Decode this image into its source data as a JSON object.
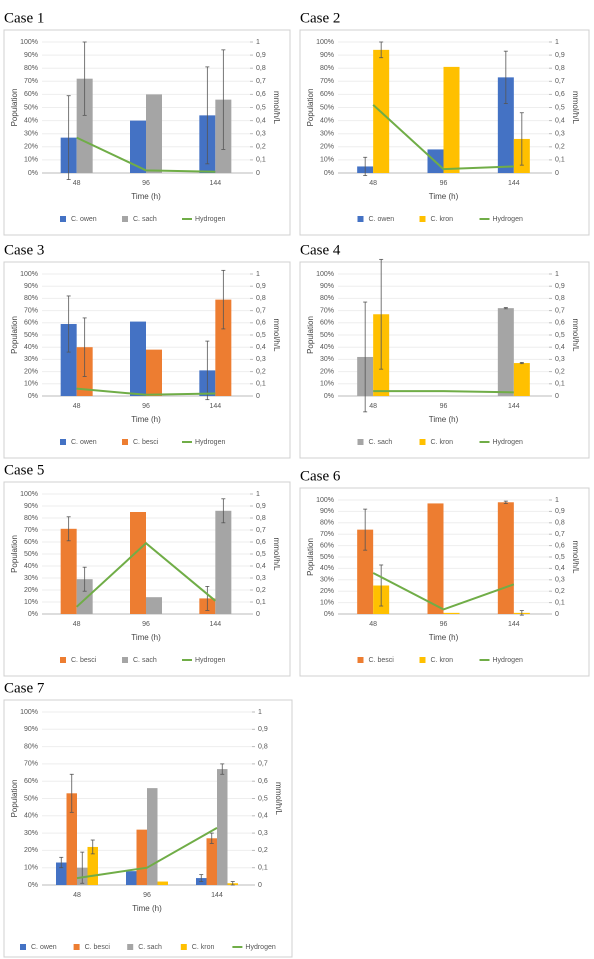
{
  "chart_data": [
    {
      "type": "bar",
      "title": "Case 1",
      "x_label": "Time (h)",
      "y_label": "Population",
      "y2_label": "mmol/h/L",
      "categories": [
        "48",
        "96",
        "144"
      ],
      "series": [
        {
          "name": "C. owen",
          "color": "#4472c4",
          "values": [
            27,
            40,
            44
          ],
          "errors": [
            32,
            null,
            37
          ]
        },
        {
          "name": "C. sach",
          "color": "#a5a5a5",
          "values": [
            72,
            60,
            56
          ],
          "errors": [
            28,
            null,
            38
          ]
        },
        {
          "name": "Hydrogen",
          "color": "#70ad47",
          "type": "line",
          "axis": "y2",
          "values": [
            0.27,
            0.02,
            0.01
          ]
        }
      ],
      "ylim": [
        0,
        100
      ],
      "yticks": [
        {
          "value": 0,
          "label": "0%"
        },
        {
          "value": 10,
          "label": "10%"
        },
        {
          "value": 20,
          "label": "20%"
        },
        {
          "value": 30,
          "label": "30%"
        },
        {
          "value": 40,
          "label": "40%"
        },
        {
          "value": 50,
          "label": "50%"
        },
        {
          "value": 60,
          "label": "60%"
        },
        {
          "value": 70,
          "label": "70%"
        },
        {
          "value": 80,
          "label": "80%"
        },
        {
          "value": 90,
          "label": "90%"
        },
        {
          "value": 100,
          "label": "100%"
        }
      ],
      "y2lim": [
        0,
        1
      ],
      "y2ticks": [
        0,
        {
          "value": 0.1,
          "label": "0,1"
        },
        {
          "value": 0.2,
          "label": "0,2"
        },
        {
          "value": 0.3,
          "label": "0,3"
        },
        {
          "value": 0.4,
          "label": "0,4"
        },
        {
          "value": 0.5,
          "label": "0,5"
        },
        {
          "value": 0.6,
          "label": "0,6"
        },
        {
          "value": 0.7,
          "label": "0,7"
        },
        {
          "value": 0.8,
          "label": "0,8"
        },
        {
          "value": 0.9,
          "label": "0,9"
        },
        1
      ],
      "legend": "bottom"
    },
    {
      "type": "bar",
      "title": "Case 2",
      "x_label": "Time (h)",
      "y_label": "Population",
      "y2_label": "mmol/h/L",
      "categories": [
        "48",
        "96",
        "144"
      ],
      "series": [
        {
          "name": "C. owen",
          "color": "#4472c4",
          "values": [
            5,
            18,
            73
          ],
          "errors": [
            7,
            null,
            20
          ]
        },
        {
          "name": "C. kron",
          "color": "#ffc000",
          "values": [
            94,
            81,
            26
          ],
          "errors": [
            6,
            null,
            20
          ]
        },
        {
          "name": "Hydrogen",
          "color": "#70ad47",
          "type": "line",
          "axis": "y2",
          "values": [
            0.52,
            0.03,
            0.05
          ]
        }
      ],
      "ylim": [
        0,
        100
      ],
      "yticks": [
        {
          "value": 0,
          "label": "0%"
        },
        {
          "value": 10,
          "label": "10%"
        },
        {
          "value": 20,
          "label": "20%"
        },
        {
          "value": 30,
          "label": "30%"
        },
        {
          "value": 40,
          "label": "40%"
        },
        {
          "value": 50,
          "label": "50%"
        },
        {
          "value": 60,
          "label": "60%"
        },
        {
          "value": 70,
          "label": "70%"
        },
        {
          "value": 80,
          "label": "80%"
        },
        {
          "value": 90,
          "label": "90%"
        },
        {
          "value": 100,
          "label": "100%"
        }
      ],
      "y2lim": [
        0,
        1
      ],
      "y2ticks": [
        0,
        {
          "value": 0.1,
          "label": "0,1"
        },
        {
          "value": 0.2,
          "label": "0,2"
        },
        {
          "value": 0.3,
          "label": "0,3"
        },
        {
          "value": 0.4,
          "label": "0,4"
        },
        {
          "value": 0.5,
          "label": "0,5"
        },
        {
          "value": 0.6,
          "label": "0,6"
        },
        {
          "value": 0.7,
          "label": "0,7"
        },
        {
          "value": 0.8,
          "label": "0,8"
        },
        {
          "value": 0.9,
          "label": "0,9"
        },
        1
      ],
      "legend": "bottom"
    },
    {
      "type": "bar",
      "title": "Case 3",
      "x_label": "Time (h)",
      "y_label": "Population",
      "y2_label": "mmol/h/L",
      "categories": [
        "48",
        "96",
        "144"
      ],
      "series": [
        {
          "name": "C. owen",
          "color": "#4472c4",
          "values": [
            59,
            61,
            21
          ],
          "errors": [
            23,
            null,
            24
          ]
        },
        {
          "name": "C. besci",
          "color": "#ed7d31",
          "values": [
            40,
            38,
            79
          ],
          "errors": [
            24,
            null,
            24
          ]
        },
        {
          "name": "Hydrogen",
          "color": "#70ad47",
          "type": "line",
          "axis": "y2",
          "values": [
            0.06,
            0.01,
            0.02
          ]
        }
      ],
      "ylim": [
        0,
        100
      ],
      "yticks": [
        {
          "value": 0,
          "label": "0%"
        },
        {
          "value": 10,
          "label": "10%"
        },
        {
          "value": 20,
          "label": "20%"
        },
        {
          "value": 30,
          "label": "30%"
        },
        {
          "value": 40,
          "label": "40%"
        },
        {
          "value": 50,
          "label": "50%"
        },
        {
          "value": 60,
          "label": "60%"
        },
        {
          "value": 70,
          "label": "70%"
        },
        {
          "value": 80,
          "label": "80%"
        },
        {
          "value": 90,
          "label": "90%"
        },
        {
          "value": 100,
          "label": "100%"
        }
      ],
      "y2lim": [
        0,
        1
      ],
      "y2ticks": [
        0,
        {
          "value": 0.1,
          "label": "0,1"
        },
        {
          "value": 0.2,
          "label": "0,2"
        },
        {
          "value": 0.3,
          "label": "0,3"
        },
        {
          "value": 0.4,
          "label": "0,4"
        },
        {
          "value": 0.5,
          "label": "0,5"
        },
        {
          "value": 0.6,
          "label": "0,6"
        },
        {
          "value": 0.7,
          "label": "0,7"
        },
        {
          "value": 0.8,
          "label": "0,8"
        },
        {
          "value": 0.9,
          "label": "0,9"
        },
        1
      ],
      "legend": "bottom"
    },
    {
      "type": "bar",
      "title": "Case 4",
      "x_label": "Time (h)",
      "y_label": "Population",
      "y2_label": "mmol/h/L",
      "categories": [
        "48",
        "96",
        "144"
      ],
      "series": [
        {
          "name": "C. sach",
          "color": "#a5a5a5",
          "values": [
            32,
            0,
            72
          ],
          "errors": [
            45,
            null,
            0.5
          ]
        },
        {
          "name": "C. kron",
          "color": "#ffc000",
          "values": [
            67,
            0,
            27
          ],
          "errors": [
            45,
            null,
            0.5
          ]
        },
        {
          "name": "Hydrogen",
          "color": "#70ad47",
          "type": "line",
          "axis": "y2",
          "values": [
            0.04,
            0.04,
            0.03
          ]
        }
      ],
      "ylim": [
        0,
        100
      ],
      "yticks": [
        {
          "value": 0,
          "label": "0%"
        },
        {
          "value": 10,
          "label": "10%"
        },
        {
          "value": 20,
          "label": "20%"
        },
        {
          "value": 30,
          "label": "30%"
        },
        {
          "value": 40,
          "label": "40%"
        },
        {
          "value": 50,
          "label": "50%"
        },
        {
          "value": 60,
          "label": "60%"
        },
        {
          "value": 70,
          "label": "70%"
        },
        {
          "value": 80,
          "label": "80%"
        },
        {
          "value": 90,
          "label": "90%"
        },
        {
          "value": 100,
          "label": "100%"
        }
      ],
      "y2lim": [
        0,
        1
      ],
      "y2ticks": [
        0,
        {
          "value": 0.1,
          "label": "0,1"
        },
        {
          "value": 0.2,
          "label": "0,2"
        },
        {
          "value": 0.3,
          "label": "0,3"
        },
        {
          "value": 0.4,
          "label": "0,4"
        },
        {
          "value": 0.5,
          "label": "0,5"
        },
        {
          "value": 0.6,
          "label": "0,6"
        },
        {
          "value": 0.7,
          "label": "0,7"
        },
        {
          "value": 0.8,
          "label": "0,8"
        },
        {
          "value": 0.9,
          "label": "0,9"
        },
        1
      ],
      "legend": "bottom"
    },
    {
      "type": "bar",
      "title": "Case 5",
      "x_label": "Time (h)",
      "y_label": "Population",
      "y2_label": "mmol/h/L",
      "categories": [
        "48",
        "96",
        "144"
      ],
      "series": [
        {
          "name": "C. besci",
          "color": "#ed7d31",
          "values": [
            71,
            85,
            13
          ],
          "errors": [
            10,
            null,
            10
          ]
        },
        {
          "name": "C. sach",
          "color": "#a5a5a5",
          "values": [
            29,
            14,
            86
          ],
          "errors": [
            10,
            null,
            10
          ]
        },
        {
          "name": "Hydrogen",
          "color": "#70ad47",
          "type": "line",
          "axis": "y2",
          "values": [
            0.06,
            0.59,
            0.11
          ]
        }
      ],
      "ylim": [
        0,
        100
      ],
      "yticks": [
        {
          "value": 0,
          "label": "0%"
        },
        {
          "value": 10,
          "label": "10%"
        },
        {
          "value": 20,
          "label": "20%"
        },
        {
          "value": 30,
          "label": "30%"
        },
        {
          "value": 40,
          "label": "40%"
        },
        {
          "value": 50,
          "label": "50%"
        },
        {
          "value": 60,
          "label": "60%"
        },
        {
          "value": 70,
          "label": "70%"
        },
        {
          "value": 80,
          "label": "80%"
        },
        {
          "value": 90,
          "label": "90%"
        },
        {
          "value": 100,
          "label": "100%"
        }
      ],
      "y2lim": [
        0,
        1
      ],
      "y2ticks": [
        0,
        {
          "value": 0.1,
          "label": "0,1"
        },
        {
          "value": 0.2,
          "label": "0,2"
        },
        {
          "value": 0.3,
          "label": "0,3"
        },
        {
          "value": 0.4,
          "label": "0,4"
        },
        {
          "value": 0.5,
          "label": "0,5"
        },
        {
          "value": 0.6,
          "label": "0,6"
        },
        {
          "value": 0.7,
          "label": "0,7"
        },
        {
          "value": 0.8,
          "label": "0,8"
        },
        {
          "value": 0.9,
          "label": "0,9"
        },
        1
      ],
      "legend": "bottom"
    },
    {
      "type": "bar",
      "title": "Case 6",
      "x_label": "Time (h)",
      "y_label": "Population",
      "y2_label": "mmol/h/L",
      "categories": [
        "48",
        "96",
        "144"
      ],
      "series": [
        {
          "name": "C. besci",
          "color": "#ed7d31",
          "values": [
            74,
            97,
            98
          ],
          "errors": [
            18,
            null,
            1
          ]
        },
        {
          "name": "C. kron",
          "color": "#ffc000",
          "values": [
            25,
            1,
            1
          ],
          "errors": [
            18,
            null,
            2
          ]
        },
        {
          "name": "Hydrogen",
          "color": "#70ad47",
          "type": "line",
          "axis": "y2",
          "values": [
            0.36,
            0.04,
            0.26
          ]
        }
      ],
      "ylim": [
        0,
        100
      ],
      "yticks": [
        {
          "value": 0,
          "label": "0%"
        },
        {
          "value": 10,
          "label": "10%"
        },
        {
          "value": 20,
          "label": "20%"
        },
        {
          "value": 30,
          "label": "30%"
        },
        {
          "value": 40,
          "label": "40%"
        },
        {
          "value": 50,
          "label": "50%"
        },
        {
          "value": 60,
          "label": "60%"
        },
        {
          "value": 70,
          "label": "70%"
        },
        {
          "value": 80,
          "label": "80%"
        },
        {
          "value": 90,
          "label": "90%"
        },
        {
          "value": 100,
          "label": "100%"
        }
      ],
      "y2lim": [
        0,
        1
      ],
      "y2ticks": [
        0,
        {
          "value": 0.1,
          "label": "0,1"
        },
        {
          "value": 0.2,
          "label": "0,2"
        },
        {
          "value": 0.3,
          "label": "0,3"
        },
        {
          "value": 0.4,
          "label": "0,4"
        },
        {
          "value": 0.5,
          "label": "0,5"
        },
        {
          "value": 0.6,
          "label": "0,6"
        },
        {
          "value": 0.7,
          "label": "0,7"
        },
        {
          "value": 0.8,
          "label": "0,8"
        },
        {
          "value": 0.9,
          "label": "0,9"
        },
        1
      ],
      "legend": "bottom"
    },
    {
      "type": "bar",
      "title": "Case 7",
      "x_label": "Time (h)",
      "y_label": "Population",
      "y2_label": "mmol/h/L",
      "categories": [
        "48",
        "96",
        "144"
      ],
      "series": [
        {
          "name": "C. owen",
          "color": "#4472c4",
          "values": [
            13,
            8,
            4
          ],
          "errors": [
            3,
            null,
            2
          ]
        },
        {
          "name": "C. besci",
          "color": "#ed7d31",
          "values": [
            53,
            32,
            27
          ],
          "errors": [
            11,
            null,
            3
          ]
        },
        {
          "name": "C. sach",
          "color": "#a5a5a5",
          "values": [
            10,
            56,
            67
          ],
          "errors": [
            9,
            null,
            3
          ]
        },
        {
          "name": "C. kron",
          "color": "#ffc000",
          "values": [
            22,
            2,
            1
          ],
          "errors": [
            4,
            null,
            1
          ]
        },
        {
          "name": "Hydrogen",
          "color": "#70ad47",
          "type": "line",
          "axis": "y2",
          "values": [
            0.04,
            0.1,
            0.33
          ]
        }
      ],
      "ylim": [
        0,
        100
      ],
      "yticks": [
        {
          "value": 0,
          "label": "0%"
        },
        {
          "value": 10,
          "label": "10%"
        },
        {
          "value": 20,
          "label": "20%"
        },
        {
          "value": 30,
          "label": "30%"
        },
        {
          "value": 40,
          "label": "40%"
        },
        {
          "value": 50,
          "label": "50%"
        },
        {
          "value": 60,
          "label": "60%"
        },
        {
          "value": 70,
          "label": "70%"
        },
        {
          "value": 80,
          "label": "80%"
        },
        {
          "value": 90,
          "label": "90%"
        },
        {
          "value": 100,
          "label": "100%"
        }
      ],
      "y2lim": [
        0,
        1
      ],
      "y2ticks": [
        0,
        {
          "value": 0.1,
          "label": "0,1"
        },
        {
          "value": 0.2,
          "label": "0,2"
        },
        {
          "value": 0.3,
          "label": "0,3"
        },
        {
          "value": 0.4,
          "label": "0,4"
        },
        {
          "value": 0.5,
          "label": "0,5"
        },
        {
          "value": 0.6,
          "label": "0,6"
        },
        {
          "value": 0.7,
          "label": "0,7"
        },
        {
          "value": 0.8,
          "label": "0,8"
        },
        {
          "value": 0.9,
          "label": "0,9"
        },
        1
      ],
      "legend": "bottom"
    }
  ]
}
